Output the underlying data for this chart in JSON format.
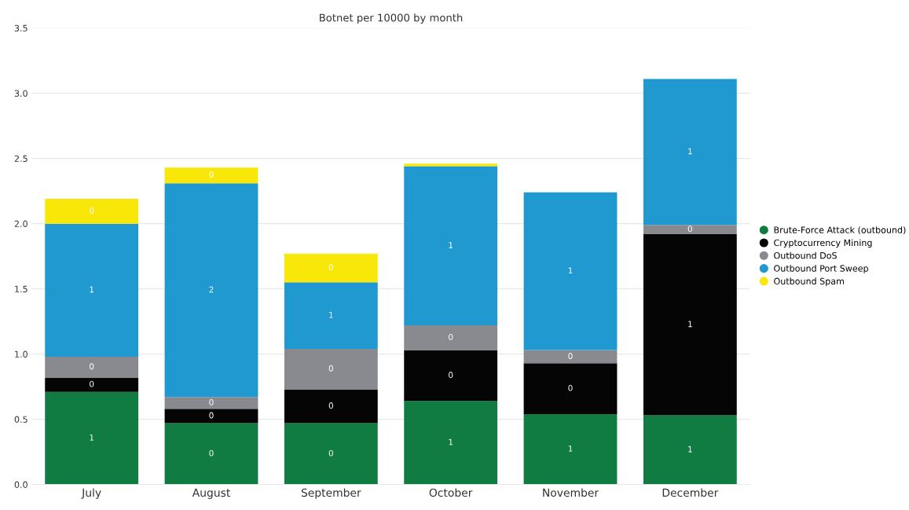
{
  "chart_data": {
    "type": "bar",
    "title": "Botnet per 10000 by month",
    "stacked": true,
    "categories": [
      "July",
      "August",
      "September",
      "October",
      "November",
      "December"
    ],
    "series": [
      {
        "name": "Brute-Force Attack (outbound)",
        "color": "#107c41",
        "values": [
          0.71,
          0.47,
          0.47,
          0.64,
          0.54,
          0.53
        ],
        "value_labels": [
          "1",
          "0",
          "0",
          "1",
          "1",
          "1"
        ]
      },
      {
        "name": "Cryptocurrency Mining",
        "color": "#050505",
        "values": [
          0.11,
          0.11,
          0.26,
          0.39,
          0.39,
          1.39
        ],
        "value_labels": [
          "0",
          "0",
          "0",
          "0",
          "0",
          "1"
        ]
      },
      {
        "name": "Outbound DoS",
        "color": "#898a8f",
        "values": [
          0.16,
          0.09,
          0.31,
          0.19,
          0.1,
          0.07
        ],
        "value_labels": [
          "0",
          "0",
          "0",
          "0",
          "0",
          "0"
        ]
      },
      {
        "name": "Outbound Port Sweep",
        "color": "#1f99cf",
        "values": [
          1.02,
          1.64,
          0.51,
          1.22,
          1.21,
          1.12
        ],
        "value_labels": [
          "1",
          "2",
          "1",
          "1",
          "1",
          "1"
        ]
      },
      {
        "name": "Outbound Spam",
        "color": "#fae70a",
        "values": [
          0.19,
          0.12,
          0.22,
          0.02,
          null,
          null
        ],
        "value_labels": [
          "0",
          "0",
          "0",
          null,
          null,
          null
        ]
      }
    ],
    "ylim": [
      0,
      3.5
    ],
    "yticks": [
      {
        "value": 0,
        "label": "0.0"
      },
      {
        "value": 0.5,
        "label": "0.5"
      },
      {
        "value": 1,
        "label": "1.0"
      },
      {
        "value": 1.5,
        "label": "1.5"
      },
      {
        "value": 2,
        "label": "2.0"
      },
      {
        "value": 2.5,
        "label": "2.5"
      },
      {
        "value": 3,
        "label": "3.0"
      },
      {
        "value": 3.5,
        "label": "3.5"
      }
    ],
    "grid": "y",
    "legend": "right",
    "marker": "circle"
  }
}
